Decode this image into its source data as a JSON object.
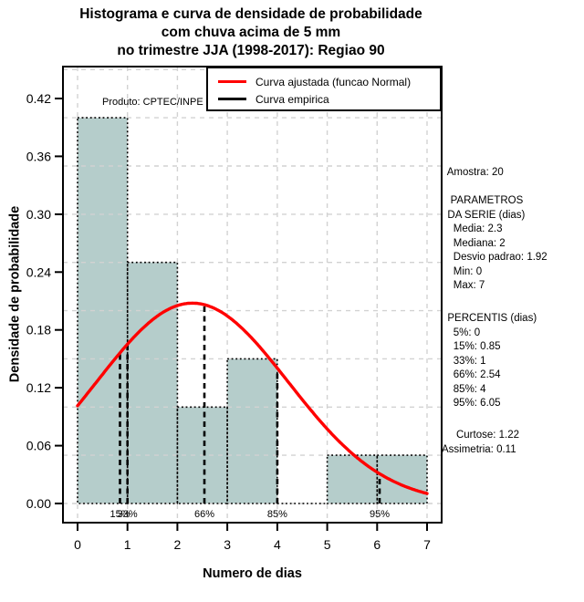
{
  "title": {
    "lines": [
      "Histograma e curva de densidade de probabilidade",
      "com chuva acima de 5 mm",
      "no trimestre JJA (1998-2017): Regiao 90"
    ]
  },
  "annotations": {
    "produto": "Produto: CPTEC/INPE"
  },
  "legend": {
    "items": [
      {
        "label": "Curva ajustada (funcao Normal)",
        "color": "#ff0000"
      },
      {
        "label": "Curva empirica",
        "color": "#000000"
      }
    ]
  },
  "side_panel": {
    "amostra": "  Amostra: 20",
    "parametros": "   PARAMETROS\n  DA SERIE (dias)\n    Media: 2.3\n    Mediana: 2\n    Desvio padrao: 1.92\n    Min: 0\n    Max: 7",
    "percentis": "  PERCENTIS (dias)\n    5%: 0\n    15%: 0.85\n    33%: 1\n    66%: 2.54\n    85%: 4\n    95%: 6.05",
    "momentos": "     Curtose: 1.22\nAssimetria: 0.11"
  },
  "chart_data": {
    "type": "bar",
    "subtype": "histogram-with-density-curve",
    "title": "Histograma e curva de densidade de probabilidade com chuva acima de 5 mm no trimestre JJA (1998-2017): Regiao 90",
    "xlabel": "Numero de dias",
    "ylabel": "Densidade de probabilidade",
    "x_ticks": [
      0,
      1,
      2,
      3,
      4,
      5,
      6,
      7
    ],
    "y_ticks": [
      "0.00",
      "0.06",
      "0.12",
      "0.18",
      "0.24",
      "0.30",
      "0.36",
      "0.42"
    ],
    "xlim": [
      0,
      7
    ],
    "ylim": [
      0,
      0.45
    ],
    "grid": {
      "on": true,
      "x_step": 1,
      "y_step": 0.05,
      "y_max": 0.45
    },
    "histogram": {
      "breaks": [
        0,
        1,
        2,
        3,
        4,
        5,
        6,
        7
      ],
      "densities": [
        0.4,
        0.25,
        0.1,
        0.15,
        0.0,
        0.05,
        0.05
      ],
      "sample_size": 20
    },
    "normal_fit": {
      "mean": 2.3,
      "sd": 1.92
    },
    "stats": {
      "amostra": 20,
      "media": 2.3,
      "mediana": 2,
      "desvio_padrao": 1.92,
      "min": 0,
      "max": 7,
      "curtose": 1.22,
      "assimetria": 0.11
    },
    "percentiles": {
      "5%": 0,
      "15%": 0.85,
      "33%": 1,
      "66%": 2.54,
      "85%": 4,
      "95%": 6.05
    },
    "percentile_lines": [
      {
        "label": "15%",
        "x": 0.85
      },
      {
        "label": "33%",
        "x": 1
      },
      {
        "label": "66%",
        "x": 2.54
      },
      {
        "label": "85%",
        "x": 4
      },
      {
        "label": "95%",
        "x": 6.05
      }
    ],
    "colors": {
      "bar_fill": "#b5cdcb",
      "bar_border": "#000000",
      "curve": "#ff0000",
      "grid": "#d2d2d2",
      "percentile_line": "#000000",
      "box": "#000000"
    },
    "legend_position": "top-right"
  }
}
